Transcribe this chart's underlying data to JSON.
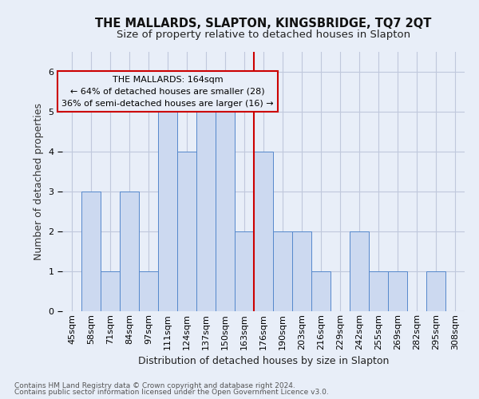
{
  "title1": "THE MALLARDS, SLAPTON, KINGSBRIDGE, TQ7 2QT",
  "title2": "Size of property relative to detached houses in Slapton",
  "xlabel": "Distribution of detached houses by size in Slapton",
  "ylabel": "Number of detached properties",
  "categories": [
    "45sqm",
    "58sqm",
    "71sqm",
    "84sqm",
    "97sqm",
    "111sqm",
    "124sqm",
    "137sqm",
    "150sqm",
    "163sqm",
    "176sqm",
    "190sqm",
    "203sqm",
    "216sqm",
    "229sqm",
    "242sqm",
    "255sqm",
    "269sqm",
    "282sqm",
    "295sqm",
    "308sqm"
  ],
  "values": [
    0,
    3,
    1,
    3,
    1,
    5,
    4,
    5,
    5,
    2,
    4,
    2,
    2,
    1,
    0,
    2,
    1,
    1,
    0,
    1,
    0
  ],
  "bar_color": "#ccd9f0",
  "bar_edge_color": "#5588cc",
  "annotation_title": "THE MALLARDS: 164sqm",
  "annotation_line1": "← 64% of detached houses are smaller (28)",
  "annotation_line2": "36% of semi-detached houses are larger (16) →",
  "vline_color": "#cc0000",
  "vline_x_index": 9,
  "ylim": [
    0,
    6.5
  ],
  "yticks": [
    0,
    1,
    2,
    3,
    4,
    5,
    6
  ],
  "footer1": "Contains HM Land Registry data © Crown copyright and database right 2024.",
  "footer2": "Contains public sector information licensed under the Open Government Licence v3.0.",
  "bg_color": "#e8eef8",
  "grid_color": "#c0c8dc",
  "title1_fontsize": 10.5,
  "title2_fontsize": 9.5,
  "tick_fontsize": 8,
  "ylabel_fontsize": 9,
  "xlabel_fontsize": 9,
  "footer_fontsize": 6.5,
  "ann_fontsize": 8
}
